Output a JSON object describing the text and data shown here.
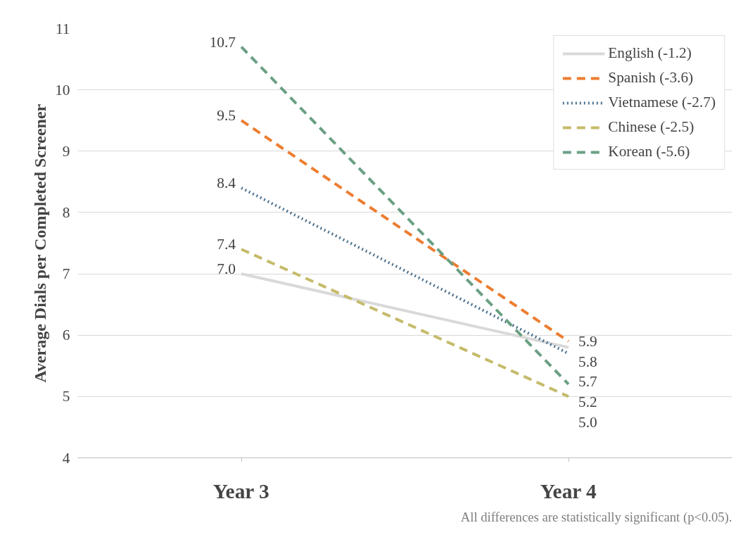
{
  "chart_data": {
    "type": "line",
    "ylabel": "Average Dials per Completed Screener",
    "categories": [
      "Year 3",
      "Year 4"
    ],
    "series": [
      {
        "name": "English (-1.2)",
        "color": "#d9d9d9",
        "line_style": "solid",
        "values": [
          7.0,
          5.8
        ],
        "value_labels": [
          "7.0",
          "5.8"
        ]
      },
      {
        "name": "Spanish (-3.6)",
        "color": "#ed7d31",
        "line_style": "dashed",
        "values": [
          9.5,
          5.9
        ],
        "value_labels": [
          "9.5",
          "5.9"
        ]
      },
      {
        "name": "Vietnamese (-2.7)",
        "color": "#4e7391",
        "line_style": "dotted",
        "values": [
          8.4,
          5.7
        ],
        "value_labels": [
          "8.4",
          "5.7"
        ]
      },
      {
        "name": "Chinese (-2.5)",
        "color": "#c5bb6a",
        "line_style": "dashed",
        "values": [
          7.4,
          5.0
        ],
        "value_labels": [
          "7.4",
          "5.0"
        ]
      },
      {
        "name": "Korean (-5.6)",
        "color": "#6aa084",
        "line_style": "dashed",
        "values": [
          10.7,
          5.2
        ],
        "value_labels": [
          "10.7",
          "5.2"
        ]
      }
    ],
    "ylim": [
      4,
      11
    ],
    "yticks": [
      4,
      5,
      6,
      7,
      8,
      9,
      10,
      11
    ],
    "grid": "y",
    "legend": "top right",
    "annotations": [
      "All differences are statistically significant (p<0.05)."
    ]
  }
}
